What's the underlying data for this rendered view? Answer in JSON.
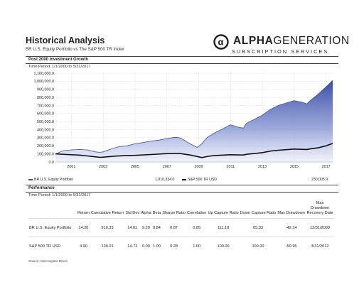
{
  "header": {
    "title": "Historical Analysis",
    "subtitle": "BR U.S. Equity Portfolio vs The S&P 500 TR Index"
  },
  "logo": {
    "word_bold": "ALPHA",
    "word_light": "GENERATION",
    "tagline": "SUBSCRIPTION SERVICES"
  },
  "growth": {
    "section_title": "Post 2000 Investment Growth",
    "period": "Time Period: 1/1/2000 to 5/31/2017"
  },
  "legend": {
    "portfolio_name": "BR U.S. Equity Portfolio",
    "portfolio_value": "1,010,334.0",
    "index_name": "S&P 500 TR USD",
    "index_value": "230,005.9"
  },
  "performance": {
    "section_title": "Performance",
    "period": "Time Period: 1/1/2000 to 5/31/2017",
    "columns": [
      "",
      "Return",
      "Cumulative Return",
      "Std Dev",
      "Alpha",
      "Beta",
      "Sharpe Ratio",
      "Correlation",
      "Up Capture Ratio",
      "Down Capture Ratio",
      "Max Drawdown",
      "Max Drawdown Recovery Date"
    ],
    "rows": [
      [
        "BR U.S. Equity Portfolio",
        "14.20",
        "910.33",
        "14.61",
        "9.20",
        "0.84",
        "0.87",
        "0.85",
        "111.18",
        "65.33",
        "-42.14",
        "12/31/2009"
      ],
      [
        "S&P 500 TR USD",
        "4.90",
        "130.01",
        "14.73",
        "0.00",
        "1.00",
        "0.28",
        "1.00",
        "100.00",
        "100.00",
        "-50.95",
        "3/31/2012"
      ]
    ]
  },
  "source": "Source: Morningstar Direct",
  "colors": {
    "portfolio_area": "#3a4fa8",
    "index_line": "#111111",
    "grid": "#cfcfcf"
  },
  "chart_data": {
    "type": "area",
    "title": "",
    "xlabel": "",
    "ylabel": "",
    "ylim": [
      0,
      1100000
    ],
    "xlim": [
      2000,
      2017.42
    ],
    "y_ticks": [
      "0.0",
      "100,000.0",
      "200,000.0",
      "300,000.0",
      "400,000.0",
      "500,000.0",
      "600,000.0",
      "700,000.0",
      "800,000.0",
      "900,000.0",
      "1,000,000.0",
      "1,100,000.0"
    ],
    "y_tick_values": [
      0,
      100000,
      200000,
      300000,
      400000,
      500000,
      600000,
      700000,
      800000,
      900000,
      1000000,
      1100000
    ],
    "x_ticks": [
      "2001",
      "2003",
      "2005",
      "2007",
      "2009",
      "2011",
      "2013",
      "2015",
      "2017"
    ],
    "x_tick_values": [
      2001,
      2003,
      2005,
      2007,
      2009,
      2011,
      2013,
      2015,
      2017
    ],
    "grid": true,
    "legend_position": "bottom",
    "series": [
      {
        "name": "BR U.S. Equity Portfolio",
        "style": "area",
        "x": [
          2000.0,
          2000.5,
          2001.0,
          2001.5,
          2002.0,
          2002.5,
          2002.8,
          2003.0,
          2003.5,
          2004.0,
          2004.5,
          2005.0,
          2005.5,
          2006.0,
          2006.5,
          2007.0,
          2007.5,
          2007.8,
          2008.0,
          2008.5,
          2008.9,
          2009.2,
          2009.5,
          2010.0,
          2010.5,
          2011.0,
          2011.5,
          2011.8,
          2012.0,
          2012.5,
          2013.0,
          2013.5,
          2014.0,
          2014.5,
          2015.0,
          2015.5,
          2015.8,
          2016.0,
          2016.5,
          2017.0,
          2017.42
        ],
        "y": [
          100000,
          140000,
          150000,
          155000,
          150000,
          125000,
          120000,
          125000,
          160000,
          190000,
          200000,
          225000,
          240000,
          260000,
          270000,
          290000,
          305000,
          300000,
          280000,
          220000,
          180000,
          225000,
          300000,
          360000,
          410000,
          460000,
          430000,
          420000,
          480000,
          530000,
          580000,
          650000,
          700000,
          730000,
          760000,
          740000,
          720000,
          760000,
          840000,
          930000,
          1010334
        ]
      },
      {
        "name": "S&P 500 TR USD",
        "style": "line",
        "x": [
          2000.0,
          2000.7,
          2001.5,
          2002.0,
          2002.8,
          2003.0,
          2003.8,
          2004.5,
          2005.0,
          2006.0,
          2007.0,
          2007.8,
          2008.5,
          2009.2,
          2009.6,
          2010.0,
          2011.0,
          2011.8,
          2012.0,
          2013.0,
          2013.5,
          2014.0,
          2015.0,
          2015.8,
          2016.0,
          2016.5,
          2017.0,
          2017.42
        ],
        "y": [
          100000,
          92000,
          85000,
          75000,
          57000,
          60000,
          73000,
          80000,
          82000,
          92000,
          104000,
          106000,
          85000,
          55000,
          70000,
          80000,
          90000,
          86000,
          95000,
          115000,
          135000,
          145000,
          160000,
          155000,
          162000,
          175000,
          200000,
          230006
        ]
      }
    ]
  }
}
